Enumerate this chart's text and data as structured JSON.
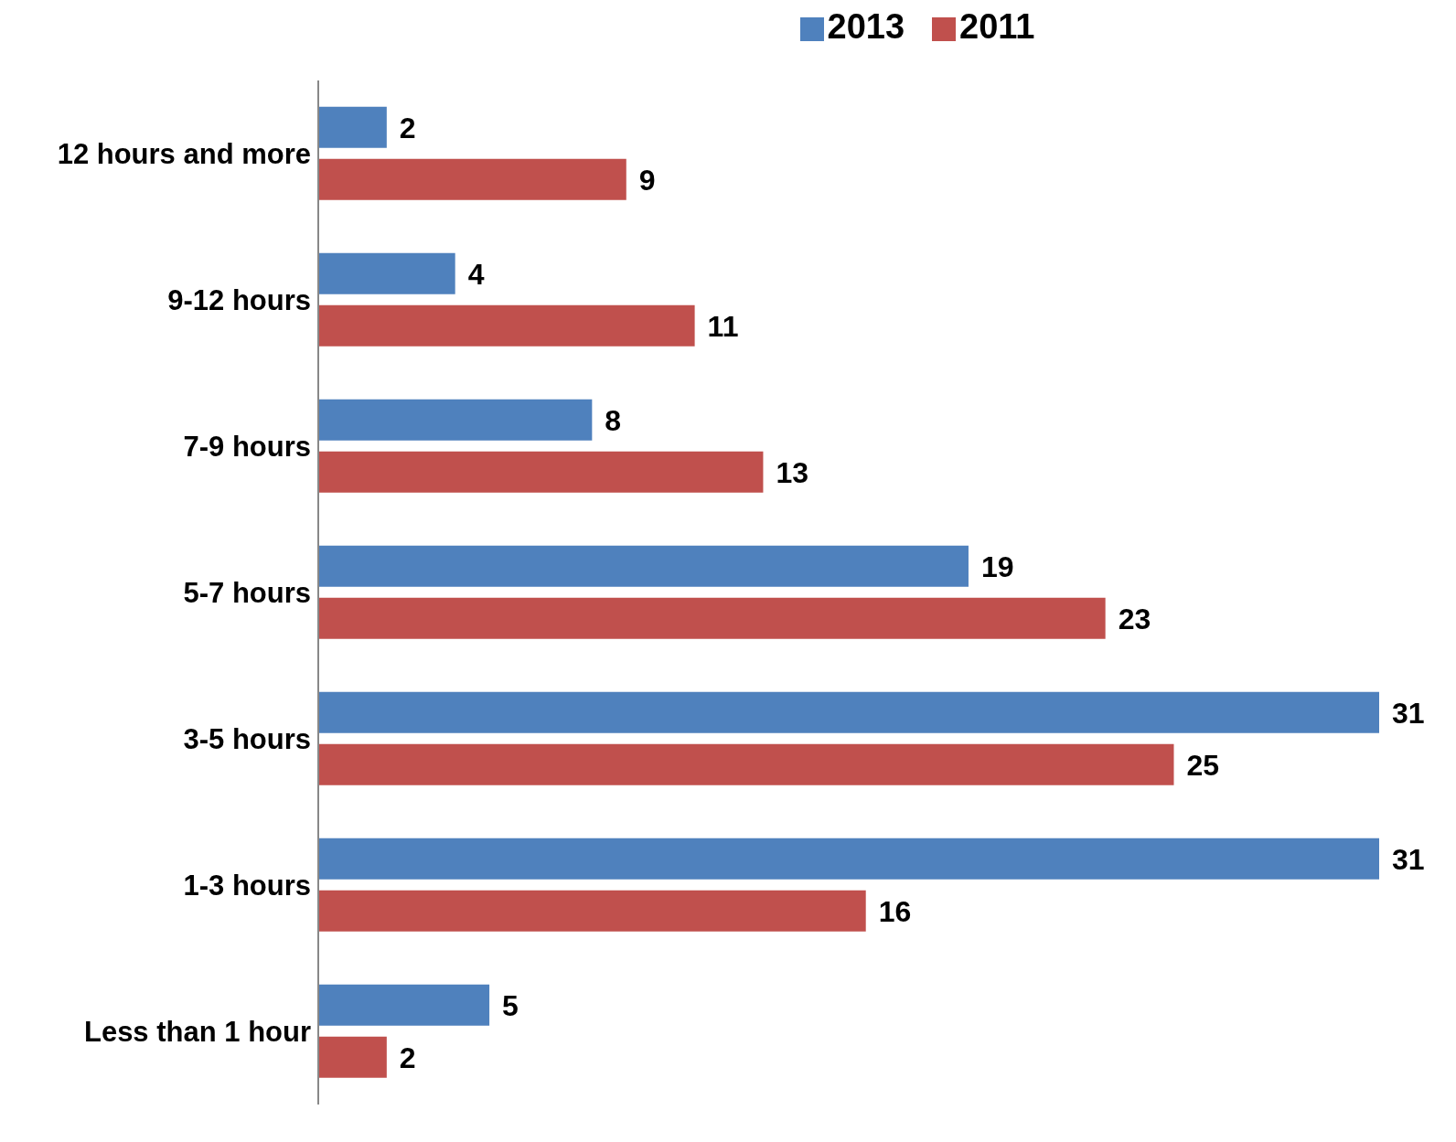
{
  "chart_data": {
    "type": "bar",
    "orientation": "horizontal",
    "categories": [
      "12 hours and more",
      "9-12 hours",
      "7-9 hours",
      "5-7 hours",
      "3-5 hours",
      "1-3 hours",
      "Less than 1 hour"
    ],
    "series": [
      {
        "name": "2013",
        "color": "#4f81bd",
        "values": [
          2,
          4,
          8,
          19,
          31,
          31,
          5
        ]
      },
      {
        "name": "2011",
        "color": "#c0504d",
        "values": [
          9,
          11,
          13,
          23,
          25,
          16,
          2
        ]
      }
    ],
    "data_labels": true,
    "legend": "top",
    "tick_labels": "y",
    "grid": false
  }
}
